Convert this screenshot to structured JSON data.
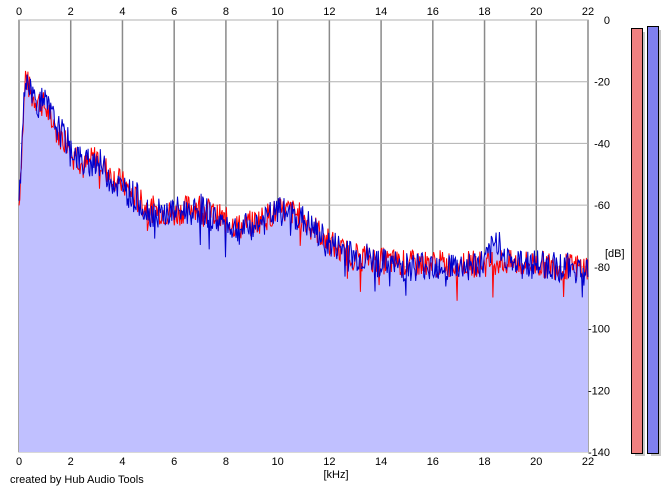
{
  "chart_data": {
    "type": "area",
    "title": "",
    "xlabel": "[kHz]",
    "ylabel": "[dB]",
    "xlim": [
      0,
      22
    ],
    "ylim": [
      -140,
      0
    ],
    "xticks": [
      "0",
      "2",
      "4",
      "6",
      "8",
      "10",
      "12",
      "14",
      "16",
      "18",
      "20",
      "22"
    ],
    "yticks": [
      "0",
      "-20",
      "-40",
      "-60",
      "-80",
      "-100",
      "-120",
      "-140"
    ],
    "grid": true,
    "x": [
      0,
      0.25,
      0.5,
      0.75,
      1,
      1.5,
      2,
      2.5,
      3,
      3.5,
      4,
      4.5,
      5,
      5.5,
      6,
      6.5,
      7,
      7.5,
      8,
      8.5,
      9,
      9.5,
      10,
      10.5,
      11,
      11.5,
      12,
      12.5,
      13,
      13.5,
      14,
      15,
      16,
      17,
      18,
      18.5,
      19,
      20,
      21,
      22
    ],
    "series": [
      {
        "color": "#ff0000",
        "values": [
          -60,
          -18,
          -25,
          -26,
          -28,
          -37,
          -40,
          -48,
          -44,
          -50,
          -53,
          -58,
          -61,
          -62,
          -63,
          -61,
          -60,
          -63,
          -65,
          -67,
          -66,
          -64,
          -62,
          -62,
          -64,
          -68,
          -72,
          -75,
          -76,
          -77,
          -78,
          -79,
          -79,
          -79,
          -79,
          -78,
          -79,
          -79,
          -80,
          -80
        ]
      },
      {
        "color": "#0000cc",
        "values": [
          -60,
          -17,
          -24,
          -27,
          -27,
          -35,
          -41,
          -47,
          -45,
          -51,
          -55,
          -57,
          -62,
          -63,
          -62,
          -62,
          -61,
          -64,
          -66,
          -68,
          -67,
          -65,
          -62,
          -63,
          -65,
          -69,
          -73,
          -74,
          -77,
          -77,
          -79,
          -80,
          -79,
          -80,
          -79,
          -71,
          -79,
          -79,
          -80,
          -81
        ]
      }
    ],
    "fill_color": "#c0c0ff",
    "meters": [
      {
        "color": "#f08080"
      },
      {
        "color": "#8080f0"
      }
    ]
  },
  "footer": {
    "credit": "created by Hub Audio Tools"
  }
}
